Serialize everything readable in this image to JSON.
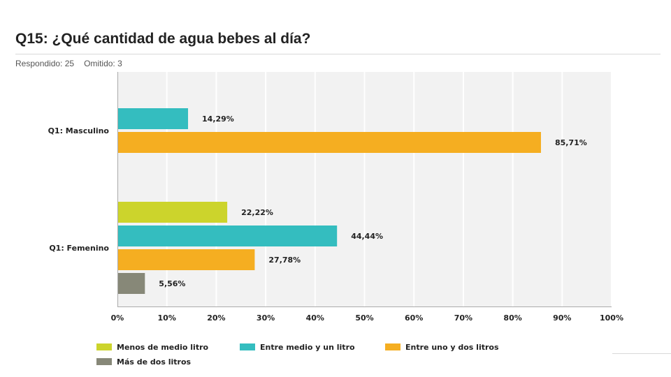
{
  "header": {
    "title": "Q15: ¿Qué cantidad de agua bebes al día?",
    "answered": "Respondido: 25",
    "skipped": "Omitido: 3"
  },
  "chart_data": {
    "type": "bar",
    "orientation": "horizontal",
    "categories": [
      "Q1: Masculino",
      "Q1: Femenino"
    ],
    "series": [
      {
        "name": "Menos de medio litro",
        "color": "#ccd42c",
        "values": [
          null,
          22.22
        ],
        "labels": [
          "",
          "22,22%"
        ]
      },
      {
        "name": "Entre medio y un litro",
        "color": "#34bdbf",
        "values": [
          14.29,
          44.44
        ],
        "labels": [
          "14,29%",
          "44,44%"
        ]
      },
      {
        "name": "Entre uno y dos litros",
        "color": "#f5ae21",
        "values": [
          85.71,
          27.78
        ],
        "labels": [
          "85,71%",
          "27,78%"
        ]
      },
      {
        "name": "Más de dos litros",
        "color": "#878878",
        "values": [
          null,
          5.56
        ],
        "labels": [
          "",
          "5,56%"
        ]
      }
    ],
    "xlim": [
      0,
      100
    ],
    "xticks": [
      "0%",
      "10%",
      "20%",
      "30%",
      "40%",
      "50%",
      "60%",
      "70%",
      "80%",
      "90%",
      "100%"
    ],
    "grid": true,
    "legend_position": "bottom",
    "plot_background": "#f2f2f2"
  }
}
